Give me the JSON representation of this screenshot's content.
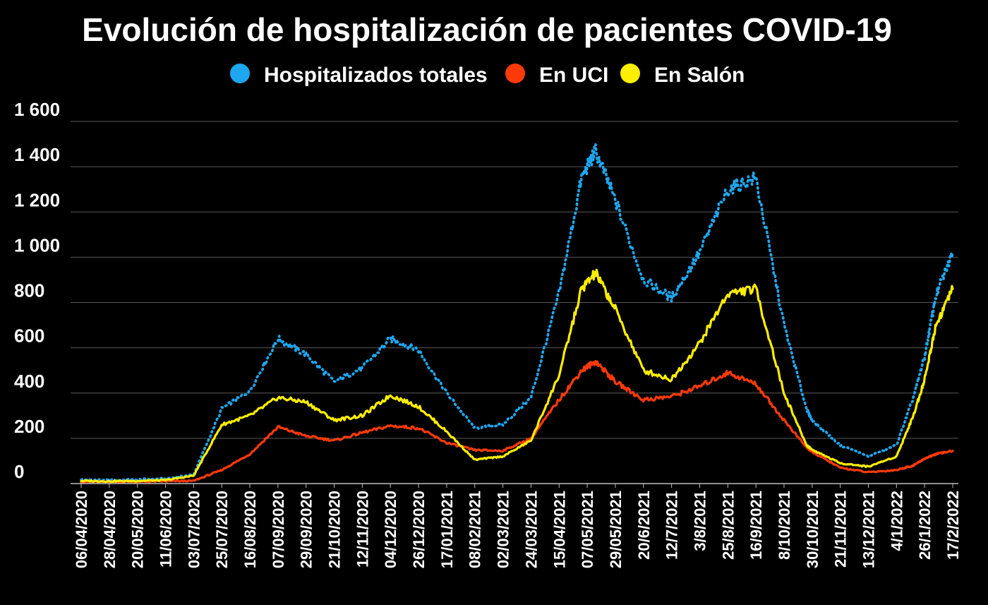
{
  "chart_data": {
    "type": "line",
    "title": "Evolución de hospitalización de pacientes COVID-19",
    "xlabel": "",
    "ylabel": "",
    "ylim": [
      0,
      1600
    ],
    "yticks": [
      0,
      200,
      400,
      600,
      800,
      1000,
      1200,
      1400,
      1600
    ],
    "ytick_labels": [
      "0",
      "200",
      "400",
      "600",
      "800",
      "1 000",
      "1 200",
      "1 400",
      "1 600"
    ],
    "grid": true,
    "legend_position": "top-center",
    "x_tick_labels": [
      "06/04/2020",
      "28/04/2020",
      "20/05/2020",
      "11/06/2020",
      "03/07/2020",
      "25/07/2020",
      "16/08/2020",
      "07/09/2020",
      "29/09/2020",
      "21/10/2020",
      "12/11/2020",
      "04/12/2020",
      "26/12/2020",
      "17/01/2021",
      "08/02/2021",
      "02/03/2021",
      "24/03/2021",
      "15/04/2021",
      "07/05/2021",
      "29/05/2021",
      "20/6/2021",
      "12/7/2021",
      "3/8/2021",
      "25/8/2021",
      "16/9/2021",
      "8/10/2021",
      "30/10/2021",
      "21/11/2021",
      "13/12/2021",
      "4/1/2022",
      "26/1/2022",
      "17/2/2022"
    ],
    "x_index": [
      0,
      1,
      2,
      3,
      4,
      5,
      6,
      7,
      8,
      9,
      10,
      11,
      12,
      13,
      14,
      15,
      16,
      17,
      17.8,
      18.3,
      19,
      20,
      21,
      22,
      23,
      24,
      25,
      25.8,
      26,
      27,
      28,
      29,
      29.6,
      30,
      30.4,
      31
    ],
    "series": [
      {
        "name": "Hospitalizados totales",
        "color": "#1ea7f0",
        "style": "dotted",
        "values": [
          18,
          15,
          18,
          22,
          40,
          330,
          410,
          640,
          570,
          450,
          510,
          640,
          590,
          400,
          245,
          260,
          380,
          840,
          1350,
          1470,
          1250,
          900,
          820,
          1020,
          1300,
          1350,
          700,
          330,
          280,
          170,
          120,
          170,
          380,
          560,
          830,
          1020
        ]
      },
      {
        "name": "En UCI",
        "color": "#ff3a0a",
        "style": "solid",
        "values": [
          8,
          8,
          8,
          10,
          12,
          60,
          130,
          250,
          210,
          190,
          225,
          255,
          245,
          180,
          148,
          145,
          200,
          370,
          500,
          540,
          450,
          370,
          385,
          430,
          490,
          440,
          280,
          160,
          140,
          70,
          50,
          60,
          80,
          110,
          130,
          145
        ]
      },
      {
        "name": "En Salón",
        "color": "#ffee00",
        "style": "solid",
        "values": [
          12,
          10,
          12,
          15,
          35,
          260,
          300,
          380,
          360,
          280,
          300,
          390,
          340,
          230,
          105,
          120,
          190,
          480,
          860,
          930,
          770,
          500,
          460,
          620,
          840,
          860,
          400,
          170,
          150,
          90,
          75,
          120,
          300,
          460,
          700,
          860
        ]
      }
    ]
  }
}
